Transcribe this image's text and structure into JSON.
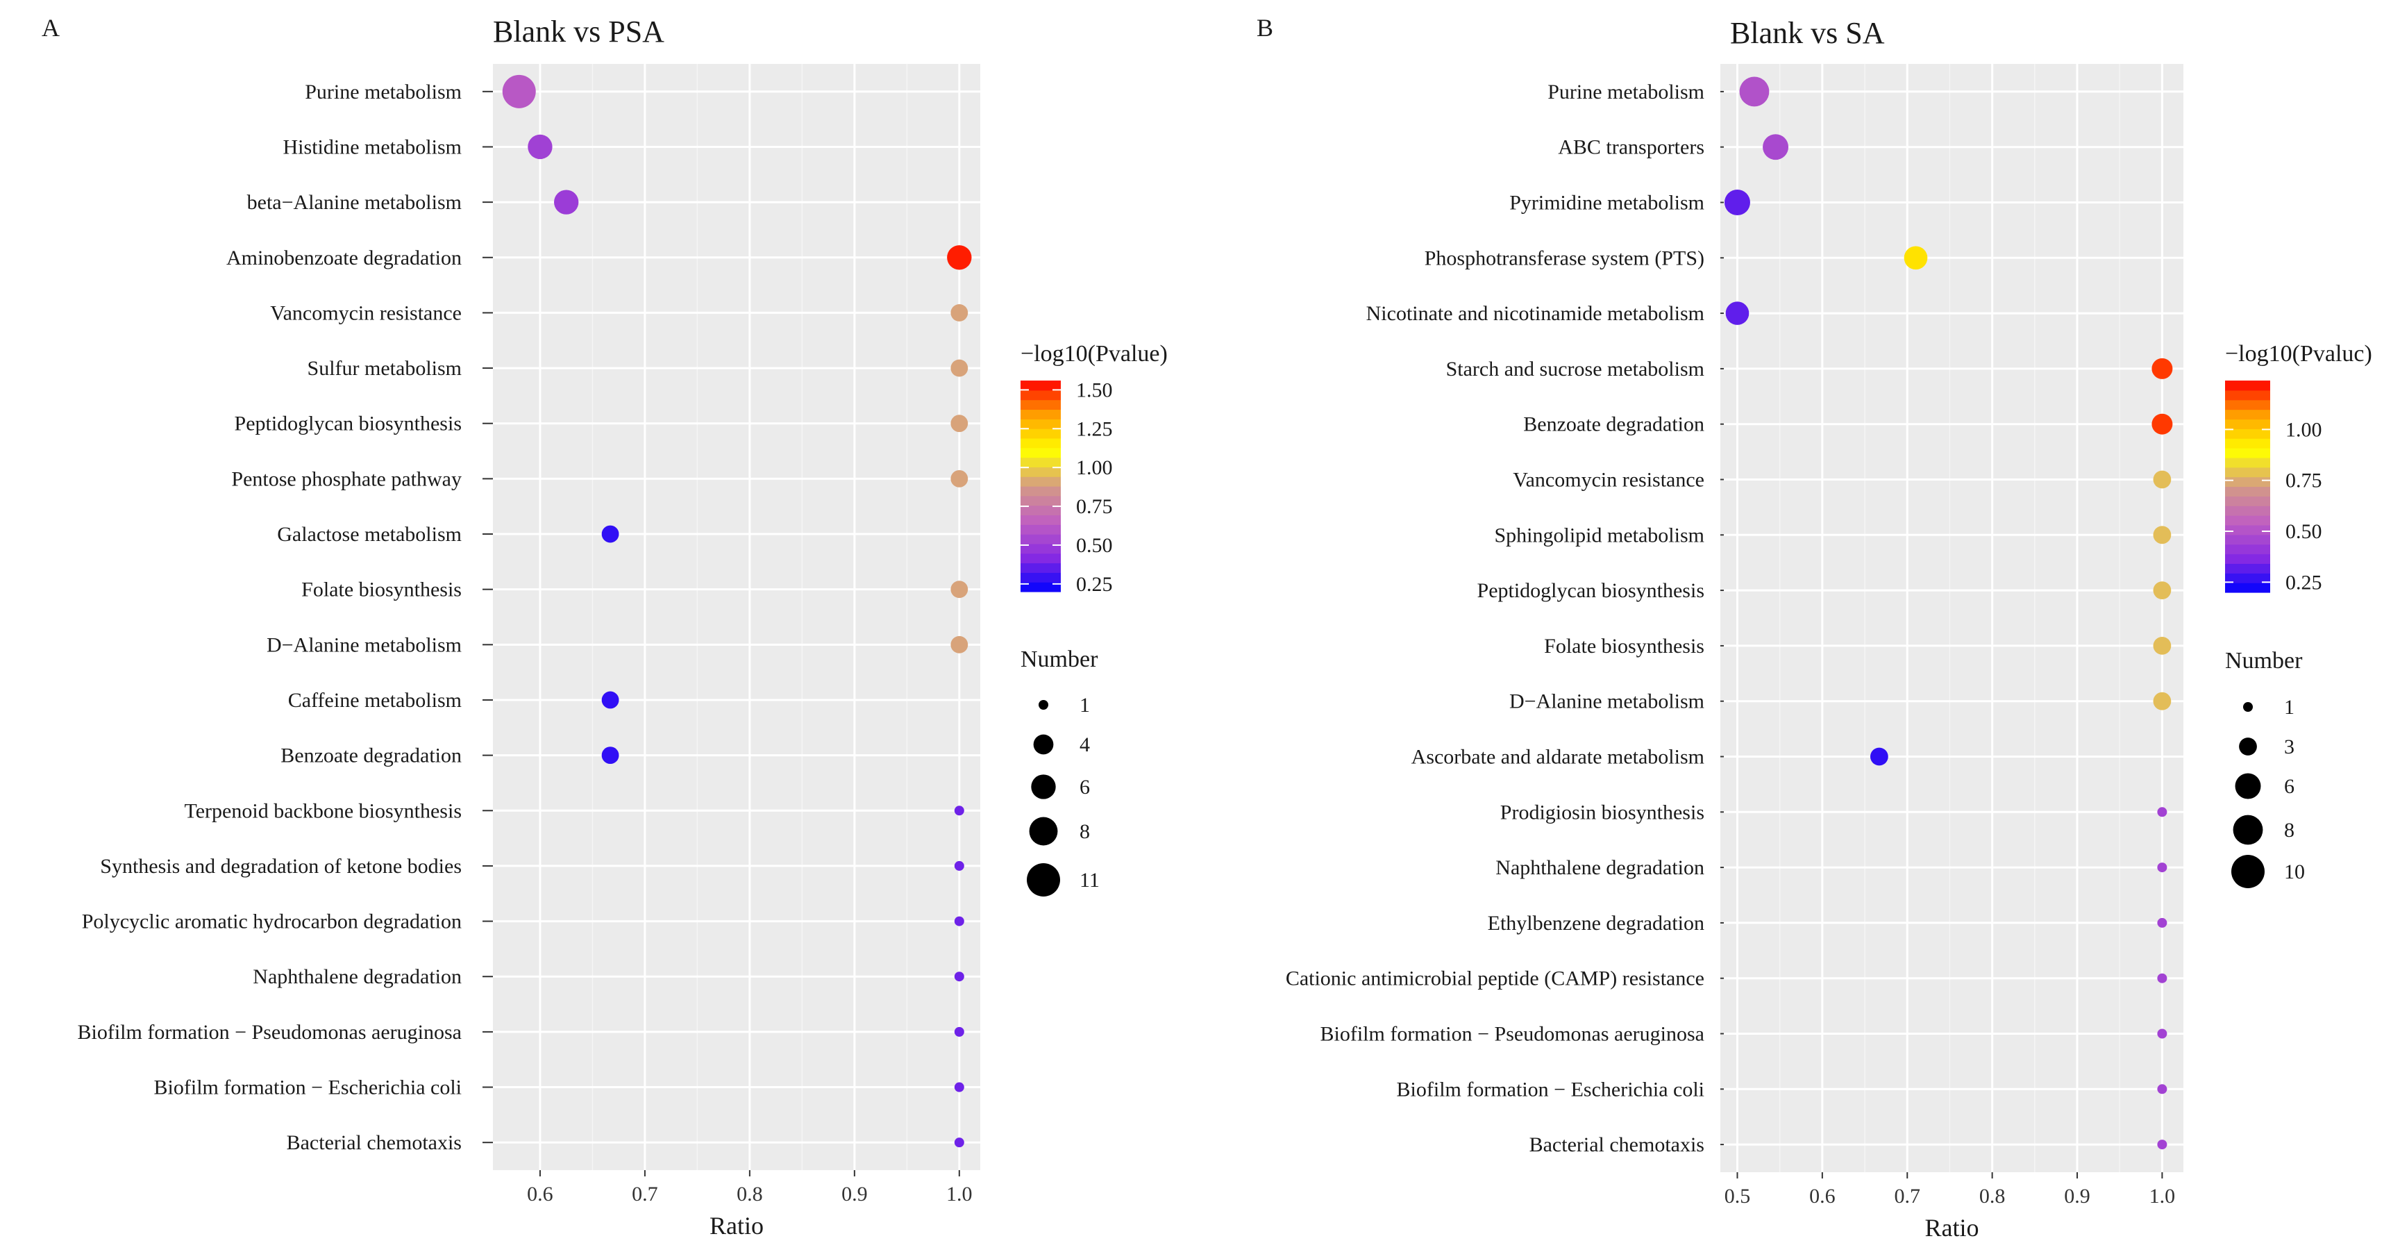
{
  "panels": [
    {
      "id": "A",
      "panel_label": "A",
      "title": "Blank vs PSA",
      "xlabel": "Ratio",
      "xlim": [
        0.555,
        1.02
      ],
      "xticks": [
        0.6,
        0.7,
        0.8,
        0.9,
        1.0
      ],
      "xtick_labels": [
        "0.6",
        "0.7",
        "0.8",
        "0.9",
        "1.0"
      ],
      "color_legend": {
        "title": "−log10(Pvalue)",
        "range": [
          0.2,
          1.56
        ],
        "ticks": [
          0.25,
          0.5,
          0.75,
          1.0,
          1.25,
          1.5
        ],
        "tick_labels": [
          "0.25",
          "0.50",
          "0.75",
          "1.00",
          "1.25",
          "1.50"
        ]
      },
      "size_legend": {
        "title": "Number",
        "values": [
          1,
          4,
          6,
          8,
          11
        ],
        "labels": [
          "1",
          "4",
          "6",
          "8",
          "11"
        ]
      },
      "categories": [
        "Purine metabolism",
        "Histidine metabolism",
        "beta−Alanine metabolism",
        "Aminobenzoate degradation",
        "Vancomycin resistance",
        "Sulfur metabolism",
        "Peptidoglycan biosynthesis",
        "Pentose phosphate pathway",
        "Galactose metabolism",
        "Folate biosynthesis",
        "D−Alanine metabolism",
        "Caffeine metabolism",
        "Benzoate degradation",
        "Terpenoid backbone biosynthesis",
        "Synthesis and degradation of ketone bodies",
        "Polycyclic aromatic hydrocarbon degradation",
        "Naphthalene degradation",
        "Biofilm formation − Pseudomonas aeruginosa",
        "Biofilm formation − Escherichia coli",
        "Bacterial chemotaxis"
      ],
      "ratio": [
        0.58,
        0.6,
        0.625,
        1.0,
        1.0,
        1.0,
        1.0,
        1.0,
        0.667,
        1.0,
        1.0,
        0.667,
        0.667,
        1.0,
        1.0,
        1.0,
        1.0,
        1.0,
        1.0,
        1.0
      ],
      "number": [
        11,
        6,
        6,
        6,
        3,
        3,
        3,
        3,
        3,
        3,
        3,
        3,
        3,
        1,
        1,
        1,
        1,
        1,
        1,
        1
      ],
      "neglog10p": [
        0.62,
        0.52,
        0.5,
        1.52,
        0.9,
        0.9,
        0.9,
        0.9,
        0.28,
        0.9,
        0.9,
        0.28,
        0.28,
        0.38,
        0.38,
        0.38,
        0.38,
        0.38,
        0.38,
        0.38
      ]
    },
    {
      "id": "B",
      "panel_label": "B",
      "title": "Blank vs  SA",
      "xlabel": "Ratio",
      "xlim": [
        0.48,
        1.025
      ],
      "xticks": [
        0.5,
        0.6,
        0.7,
        0.8,
        0.9,
        1.0
      ],
      "xtick_labels": [
        "0.5",
        "0.6",
        "0.7",
        "0.8",
        "0.9",
        "1.0"
      ],
      "color_legend": {
        "title": "−log10(Pvaluc)",
        "range": [
          0.2,
          1.24
        ],
        "ticks": [
          0.25,
          0.5,
          0.75,
          1.0
        ],
        "tick_labels": [
          "0.25",
          "0.50",
          "0.75",
          "1.00"
        ]
      },
      "size_legend": {
        "title": "Number",
        "values": [
          1,
          3,
          6,
          8,
          10
        ],
        "labels": [
          "1",
          "3",
          "6",
          "8",
          "10"
        ]
      },
      "categories": [
        "Purine metabolism",
        "ABC transporters",
        "Pyrimidine metabolism",
        "Phosphotransferase system (PTS)",
        "Nicotinate and nicotinamide metabolism",
        "Starch and sucrose metabolism",
        "Benzoate degradation",
        "Vancomycin resistance",
        "Sphingolipid metabolism",
        "Peptidoglycan biosynthesis",
        "Folate biosynthesis",
        "D−Alanine metabolism",
        "Ascorbate and aldarate metabolism",
        "Prodigiosin biosynthesis",
        "Naphthalene degradation",
        "Ethylbenzene degradation",
        "Cationic antimicrobial peptide (CAMP) resistance",
        "Biofilm formation − Pseudomonas aeruginosa",
        "Biofilm formation − Escherichia coli",
        "Bacterial chemotaxis"
      ],
      "ratio": [
        0.52,
        0.545,
        0.5,
        0.71,
        0.5,
        1.0,
        1.0,
        1.0,
        1.0,
        1.0,
        1.0,
        1.0,
        0.667,
        1.0,
        1.0,
        1.0,
        1.0,
        1.0,
        1.0,
        1.0
      ],
      "number": [
        8,
        6,
        6,
        5,
        5,
        4,
        4,
        3,
        3,
        3,
        3,
        3,
        3,
        1,
        1,
        1,
        1,
        1,
        1,
        1
      ],
      "neglog10p": [
        0.5,
        0.47,
        0.32,
        0.95,
        0.32,
        1.18,
        1.18,
        0.78,
        0.78,
        0.78,
        0.78,
        0.78,
        0.26,
        0.45,
        0.45,
        0.45,
        0.45,
        0.45,
        0.45,
        0.45
      ]
    }
  ],
  "chart_data": [
    {
      "type": "scatter",
      "title": "Blank vs PSA",
      "xlabel": "Ratio",
      "ylabel": "",
      "xlim": [
        0.555,
        1.02
      ],
      "color_metric": "−log10(Pvalue)",
      "size_metric": "Number",
      "categories": [
        "Purine metabolism",
        "Histidine metabolism",
        "beta−Alanine metabolism",
        "Aminobenzoate degradation",
        "Vancomycin resistance",
        "Sulfur metabolism",
        "Peptidoglycan biosynthesis",
        "Pentose phosphate pathway",
        "Galactose metabolism",
        "Folate biosynthesis",
        "D−Alanine metabolism",
        "Caffeine metabolism",
        "Benzoate degradation",
        "Terpenoid backbone biosynthesis",
        "Synthesis and degradation of ketone bodies",
        "Polycyclic aromatic hydrocarbon degradation",
        "Naphthalene degradation",
        "Biofilm formation − Pseudomonas aeruginosa",
        "Biofilm formation − Escherichia coli",
        "Bacterial chemotaxis"
      ],
      "x": [
        0.58,
        0.6,
        0.625,
        1.0,
        1.0,
        1.0,
        1.0,
        1.0,
        0.667,
        1.0,
        1.0,
        0.667,
        0.667,
        1.0,
        1.0,
        1.0,
        1.0,
        1.0,
        1.0,
        1.0
      ],
      "size": [
        11,
        6,
        6,
        6,
        3,
        3,
        3,
        3,
        3,
        3,
        3,
        3,
        3,
        1,
        1,
        1,
        1,
        1,
        1,
        1
      ],
      "color_value": [
        0.62,
        0.52,
        0.5,
        1.52,
        0.9,
        0.9,
        0.9,
        0.9,
        0.28,
        0.9,
        0.9,
        0.28,
        0.28,
        0.38,
        0.38,
        0.38,
        0.38,
        0.38,
        0.38,
        0.38
      ]
    },
    {
      "type": "scatter",
      "title": "Blank vs  SA",
      "xlabel": "Ratio",
      "ylabel": "",
      "xlim": [
        0.48,
        1.025
      ],
      "color_metric": "−log10(Pvaluc)",
      "size_metric": "Number",
      "categories": [
        "Purine metabolism",
        "ABC transporters",
        "Pyrimidine metabolism",
        "Phosphotransferase system (PTS)",
        "Nicotinate and nicotinamide metabolism",
        "Starch and sucrose metabolism",
        "Benzoate degradation",
        "Vancomycin resistance",
        "Sphingolipid metabolism",
        "Peptidoglycan biosynthesis",
        "Folate biosynthesis",
        "D−Alanine metabolism",
        "Ascorbate and aldarate metabolism",
        "Prodigiosin biosynthesis",
        "Naphthalene degradation",
        "Ethylbenzene degradation",
        "Cationic antimicrobial peptide (CAMP) resistance",
        "Biofilm formation − Pseudomonas aeruginosa",
        "Biofilm formation − Escherichia coli",
        "Bacterial chemotaxis"
      ],
      "x": [
        0.52,
        0.545,
        0.5,
        0.71,
        0.5,
        1.0,
        1.0,
        1.0,
        1.0,
        1.0,
        1.0,
        1.0,
        0.667,
        1.0,
        1.0,
        1.0,
        1.0,
        1.0,
        1.0,
        1.0
      ],
      "size": [
        8,
        6,
        6,
        5,
        5,
        4,
        4,
        3,
        3,
        3,
        3,
        3,
        3,
        1,
        1,
        1,
        1,
        1,
        1,
        1
      ],
      "color_value": [
        0.5,
        0.47,
        0.32,
        0.95,
        0.32,
        1.18,
        1.18,
        0.78,
        0.78,
        0.78,
        0.78,
        0.78,
        0.26,
        0.45,
        0.45,
        0.45,
        0.45,
        0.45,
        0.45,
        0.45
      ]
    }
  ],
  "colors": {
    "panel_bg": "#ebebeb",
    "grid_major": "#ffffff",
    "grid_minor": "#f5f5f5",
    "text": "#1a1a1a",
    "gradient_stops": [
      "#0000ff",
      "#8a2be2",
      "#c060c0",
      "#d49a86",
      "#ffff00",
      "#ffa500",
      "#ff0000"
    ]
  }
}
